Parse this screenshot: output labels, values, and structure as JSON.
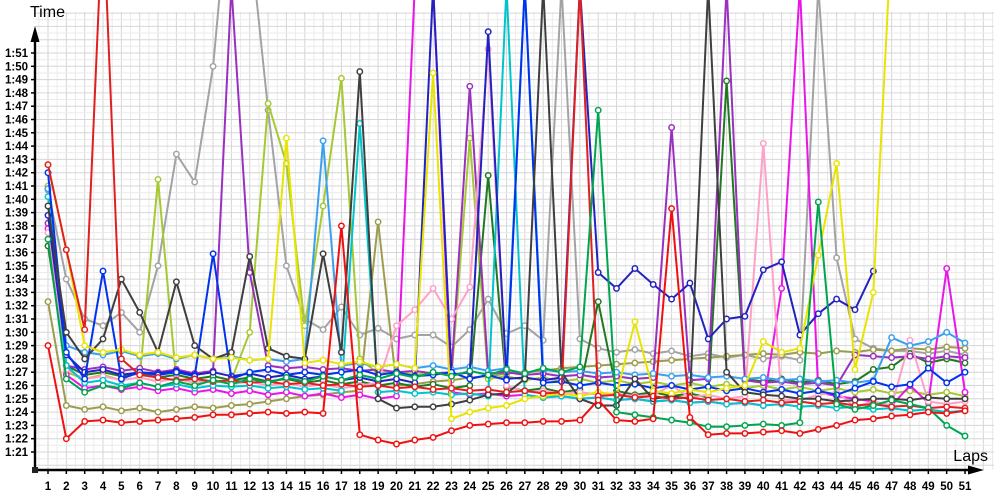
{
  "labels": {
    "y_axis_title": "Time",
    "x_axis_title": "Laps"
  },
  "chart_data": {
    "type": "line",
    "title": "",
    "xlabel": "Laps",
    "ylabel": "Time",
    "grid": true,
    "legend": "none",
    "x_ticks": [
      1,
      2,
      3,
      4,
      5,
      6,
      7,
      8,
      9,
      10,
      11,
      12,
      13,
      14,
      15,
      16,
      17,
      18,
      19,
      20,
      21,
      22,
      23,
      24,
      25,
      26,
      27,
      28,
      29,
      30,
      31,
      32,
      33,
      34,
      35,
      36,
      37,
      38,
      39,
      40,
      41,
      42,
      43,
      44,
      45,
      46,
      47,
      48,
      49,
      50,
      51
    ],
    "y_ticks": [
      "1:21",
      "1:22",
      "1:23",
      "1:24",
      "1:25",
      "1:26",
      "1:27",
      "1:28",
      "1:29",
      "1:30",
      "1:31",
      "1:32",
      "1:33",
      "1:34",
      "1:35",
      "1:36",
      "1:37",
      "1:38",
      "1:39",
      "1:40",
      "1:41",
      "1:42",
      "1:43",
      "1:44",
      "1:45",
      "1:46",
      "1:47",
      "1:48",
      "1:49",
      "1:50",
      "1:51"
    ],
    "y_min_seconds": 81,
    "y_max_seconds": 111,
    "note": "lap times in seconds; values above 115 run off the top of the plot (pit/incident laps); null = no data",
    "series": [
      {
        "name": "gray",
        "color": "#a3a3a3",
        "values": [
          100.7,
          94,
          91,
          90.5,
          91.5,
          90,
          95,
          103.4,
          101.3,
          110,
          125,
          120,
          106.7,
          95,
          91,
          90.2,
          91.9,
          89.8,
          90.3,
          89.5,
          89.8,
          89.8,
          88.9,
          90.2,
          92.5,
          89.9,
          90.5,
          89.4,
          116,
          89.5,
          88.8,
          88.5,
          88.7,
          88.4,
          88.6,
          88.2,
          88.4,
          88.1,
          88.3,
          88,
          88.2,
          87.9,
          116,
          95.6,
          89.5,
          88.8,
          88.6,
          88.6,
          88.4,
          88.6,
          88.3
        ]
      },
      {
        "name": "olive",
        "color": "#9c9c4e",
        "values": [
          92.3,
          84.5,
          84.2,
          84.4,
          84.1,
          84.3,
          84,
          84.2,
          84.4,
          84.3,
          84.5,
          84.6,
          84.8,
          85,
          85.2,
          85.3,
          85.5,
          85.6,
          98.3,
          86,
          86.1,
          86.3,
          86.4,
          86.6,
          86.7,
          86.9,
          87,
          87.1,
          87.3,
          87.4,
          87.5,
          87.6,
          87.7,
          87.8,
          87.9,
          88,
          88.1,
          88.2,
          88.3,
          88.4,
          88.3,
          88.5,
          88.4,
          88.6,
          88.5,
          88.7,
          88.6,
          88.8,
          88.7,
          88.9,
          88.8
        ]
      },
      {
        "name": "yellowgreen",
        "color": "#a6c832",
        "values": [
          101,
          87,
          86.5,
          86.8,
          86.4,
          86.6,
          101.5,
          86.3,
          86.5,
          86.2,
          86.4,
          90,
          107.2,
          102.7,
          90.5,
          99.5,
          109.1,
          88,
          86.9,
          87.1,
          86.8,
          87,
          86.7,
          104.6,
          86.5,
          86.7,
          86.4,
          86.6,
          86.3,
          86.5,
          86.2,
          86.4,
          86.1,
          86.3,
          86,
          86.2,
          85.9,
          86.1,
          85.8,
          86,
          85.7,
          85.9,
          85.6,
          85.8,
          85.5,
          85.7,
          85.4,
          85.6,
          85.3,
          85.5,
          85.2
        ]
      },
      {
        "name": "darkgreen",
        "color": "#217821",
        "values": [
          96.5,
          87.5,
          86.8,
          87,
          86.7,
          86.9,
          86.6,
          86.8,
          86.5,
          86.7,
          86.4,
          86.6,
          86.3,
          86.5,
          86.2,
          86.4,
          86.1,
          86.3,
          86,
          86.2,
          85.9,
          86.1,
          85.8,
          86,
          101.8,
          85.9,
          85.6,
          85.8,
          85.5,
          85.7,
          92.3,
          85.6,
          85.3,
          85.5,
          85.2,
          85.4,
          85.1,
          108.9,
          86.5,
          86.3,
          86.5,
          86.2,
          86.4,
          86.1,
          86.3,
          87.2,
          87.4,
          88.4,
          87.7,
          88,
          87.7
        ]
      },
      {
        "name": "purple",
        "color": "#9a30c0",
        "values": [
          98.2,
          87.5,
          87.2,
          87.4,
          87.1,
          87.3,
          87,
          87.2,
          86.9,
          87.1,
          116,
          94.5,
          87.5,
          87.3,
          87.4,
          87.2,
          87.3,
          87.1,
          87.2,
          87,
          87.1,
          86.9,
          87,
          108.5,
          86.9,
          87,
          86.8,
          86.9,
          86.7,
          86.8,
          86.6,
          86.7,
          86.5,
          86.6,
          105.4,
          86.4,
          86.5,
          116,
          86.4,
          86.2,
          86.3,
          86.1,
          86.2,
          86,
          88.3,
          88.2,
          88.1,
          88.2,
          88,
          88.2,
          88.1
        ]
      },
      {
        "name": "magenta",
        "color": "#e816e8",
        "values": [
          97.8,
          86.8,
          85.8,
          86,
          85.7,
          85.9,
          85.6,
          85.8,
          85.5,
          85.7,
          85.4,
          85.6,
          85.3,
          85.5,
          85.2,
          85.4,
          85.1,
          85.3,
          85,
          85.2,
          116,
          116,
          85.5,
          85.3,
          85.4,
          85.2,
          85.3,
          85.1,
          85.2,
          85,
          85.1,
          84.9,
          85,
          84.8,
          84.9,
          84.7,
          84.8,
          84.6,
          84.7,
          84.5,
          93.3,
          116,
          85.5,
          85.2,
          85,
          84.8,
          84.5,
          86,
          84.7,
          94.8,
          85.5
        ]
      },
      {
        "name": "pink",
        "color": "#ffa0c8",
        "values": [
          97.5,
          87.2,
          86.5,
          86.7,
          86.4,
          86.6,
          86.3,
          86.5,
          86.2,
          86.4,
          86.1,
          86.3,
          86,
          86.2,
          85.9,
          86.1,
          85.8,
          86,
          86.2,
          90.5,
          91.7,
          93.3,
          91,
          93.4,
          111.3,
          86,
          85.5,
          85.6,
          85.4,
          85.5,
          85.3,
          85.4,
          85.2,
          85.3,
          86,
          85.1,
          85.3,
          85,
          85.2,
          104.2,
          84.9,
          84.9,
          85.3,
          85.5,
          84.4,
          84.8,
          84.5,
          89.4,
          84.8,
          84.6,
          84.8
        ]
      },
      {
        "name": "dodgerblue",
        "color": "#3aa0f0",
        "values": [
          100.8,
          89,
          88.5,
          88.3,
          88.6,
          88.2,
          88.4,
          88,
          88.3,
          88,
          88.2,
          87.9,
          88,
          87.8,
          88,
          104.4,
          87.5,
          87.7,
          87.4,
          87.6,
          87.3,
          87.5,
          87.2,
          87.4,
          87.1,
          87.3,
          116,
          87.2,
          87,
          87.1,
          86.9,
          87,
          86.8,
          86.9,
          86.7,
          86.8,
          86.6,
          86.7,
          86.5,
          86.6,
          86.4,
          86.5,
          86.3,
          86.4,
          86.2,
          86.4,
          89.6,
          89,
          89.3,
          90,
          89.2
        ]
      },
      {
        "name": "cyan",
        "color": "#00c4cc",
        "values": [
          100.2,
          87.5,
          86.2,
          86.4,
          86,
          86.2,
          85.9,
          86.1,
          85.8,
          86,
          85.9,
          86,
          85.8,
          85.9,
          85.7,
          85.8,
          85.6,
          105.7,
          85.5,
          85.6,
          85.4,
          85.5,
          85.3,
          85.4,
          85.2,
          116,
          85.3,
          85.1,
          85.2,
          85,
          85.1,
          84.9,
          85,
          84.8,
          84.9,
          84.7,
          84.8,
          84.6,
          84.7,
          84.5,
          84.6,
          84.4,
          84.5,
          84.3,
          84.4,
          84.2,
          84.3,
          84.1,
          84.2,
          84,
          84.1
        ]
      },
      {
        "name": "navy",
        "color": "#2222c0",
        "values": [
          98.8,
          88.3,
          87,
          87.2,
          86.8,
          87,
          86.9,
          87.1,
          86.8,
          87,
          86.7,
          86.9,
          86.6,
          86.8,
          86.5,
          86.7,
          86.4,
          86.6,
          86.3,
          86.5,
          86.2,
          116,
          86.8,
          87,
          112.6,
          86.5,
          86.6,
          86.4,
          86.6,
          116,
          94.5,
          93.3,
          94.8,
          93.6,
          92.5,
          93.7,
          89.5,
          91,
          91.2,
          94.7,
          95.3,
          89.8,
          91.4,
          92.5,
          91.7,
          94.6,
          null,
          null,
          null,
          null,
          null
        ]
      },
      {
        "name": "blue",
        "color": "#0033ee",
        "values": [
          102,
          88.5,
          86.5,
          94.6,
          86.5,
          87,
          86.8,
          87,
          86.7,
          95.9,
          86.5,
          87,
          87.2,
          86.8,
          87,
          86.8,
          87,
          87.2,
          86.8,
          87,
          86.7,
          86.8,
          87,
          86.5,
          86.8,
          86.4,
          116,
          86.2,
          86.3,
          86,
          86.2,
          86,
          86.1,
          85.8,
          86,
          85.7,
          85.9,
          85.6,
          85.8,
          85.5,
          85.7,
          85.4,
          85.6,
          85.3,
          85.8,
          86.3,
          85.9,
          86.1,
          87.3,
          86.2,
          87
        ]
      },
      {
        "name": "black",
        "color": "#3f3f3f",
        "values": [
          99.5,
          90,
          88,
          89.5,
          94,
          91.5,
          88.5,
          93.8,
          89,
          88,
          88.5,
          95.7,
          88.8,
          88.2,
          88,
          95.9,
          88.5,
          109.6,
          85,
          84.3,
          84.4,
          84.4,
          84.6,
          84.9,
          85.3,
          85.4,
          86.5,
          116,
          87,
          85,
          84.5,
          84.5,
          86.5,
          85,
          85.2,
          85,
          116,
          87,
          85.5,
          85.3,
          85.2,
          85,
          85,
          84.8,
          84.9,
          85,
          85,
          84.9,
          85.1,
          85,
          85
        ]
      },
      {
        "name": "yellow",
        "color": "#e8e400",
        "values": [
          102.6,
          96.2,
          89,
          88.5,
          88.7,
          88.3,
          88.5,
          88.1,
          88.3,
          88,
          88.1,
          87.9,
          88,
          104.6,
          87.7,
          87.9,
          87.6,
          87.8,
          87.4,
          87.6,
          87.3,
          109.5,
          83.5,
          84,
          84.3,
          84.5,
          85,
          85.2,
          85.4,
          85.2,
          85.5,
          85.3,
          90.8,
          85.6,
          85.4,
          85.7,
          85.5,
          85.8,
          86,
          89.3,
          88.5,
          88.8,
          95.8,
          102.7,
          87.2,
          93,
          120,
          null,
          null,
          null,
          null
        ]
      },
      {
        "name": "crimson",
        "color": "#e02020",
        "values": [
          102.6,
          96.2,
          90.2,
          122,
          88,
          86.8,
          86.6,
          86.4,
          86.5,
          86.3,
          86.4,
          86.2,
          86.3,
          86.1,
          86.2,
          86,
          86.1,
          85.9,
          86,
          85.8,
          85.9,
          85.7,
          85.8,
          85.6,
          85.7,
          85.5,
          85.6,
          85.4,
          85.5,
          116,
          85.2,
          85.3,
          85.1,
          85.2,
          85,
          85.1,
          84.9,
          85,
          84.8,
          84.9,
          84.7,
          84.8,
          84.6,
          84.7,
          84.5,
          84.6,
          84.4,
          84.5,
          84.3,
          84.4,
          84.3
        ]
      },
      {
        "name": "green",
        "color": "#00a550",
        "values": [
          97,
          86.5,
          85.5,
          86,
          85.8,
          86.2,
          85.9,
          86.3,
          86,
          86.4,
          86.1,
          86.5,
          86.2,
          86.6,
          86.3,
          86.7,
          86.4,
          86.8,
          86.5,
          86.9,
          86.6,
          87,
          86.7,
          87.1,
          86.8,
          87.2,
          86.9,
          87.3,
          87,
          87.4,
          106.7,
          84,
          83.8,
          83.6,
          83.4,
          83.2,
          82.9,
          82.9,
          83,
          83.1,
          83,
          83.2,
          99.8,
          84.6,
          84.2,
          84.5,
          84.9,
          84.6,
          84.3,
          83,
          82.2
        ]
      },
      {
        "name": "red",
        "color": "#f01010",
        "values": [
          89,
          82,
          83.3,
          83.4,
          83.2,
          83.3,
          83.4,
          83.5,
          83.6,
          83.8,
          83.8,
          83.9,
          84,
          83.9,
          84,
          83.9,
          98,
          82.3,
          81.9,
          81.6,
          81.9,
          82.1,
          82.6,
          83,
          83.1,
          83.2,
          83.2,
          83.3,
          83.3,
          83.4,
          84.9,
          83.4,
          83.3,
          83.5,
          99.3,
          83.6,
          82.3,
          82.4,
          82.4,
          82.5,
          82.6,
          82.4,
          82.7,
          83,
          83.4,
          83.5,
          83.7,
          83.8,
          84,
          83.9,
          84.1
        ]
      }
    ]
  }
}
